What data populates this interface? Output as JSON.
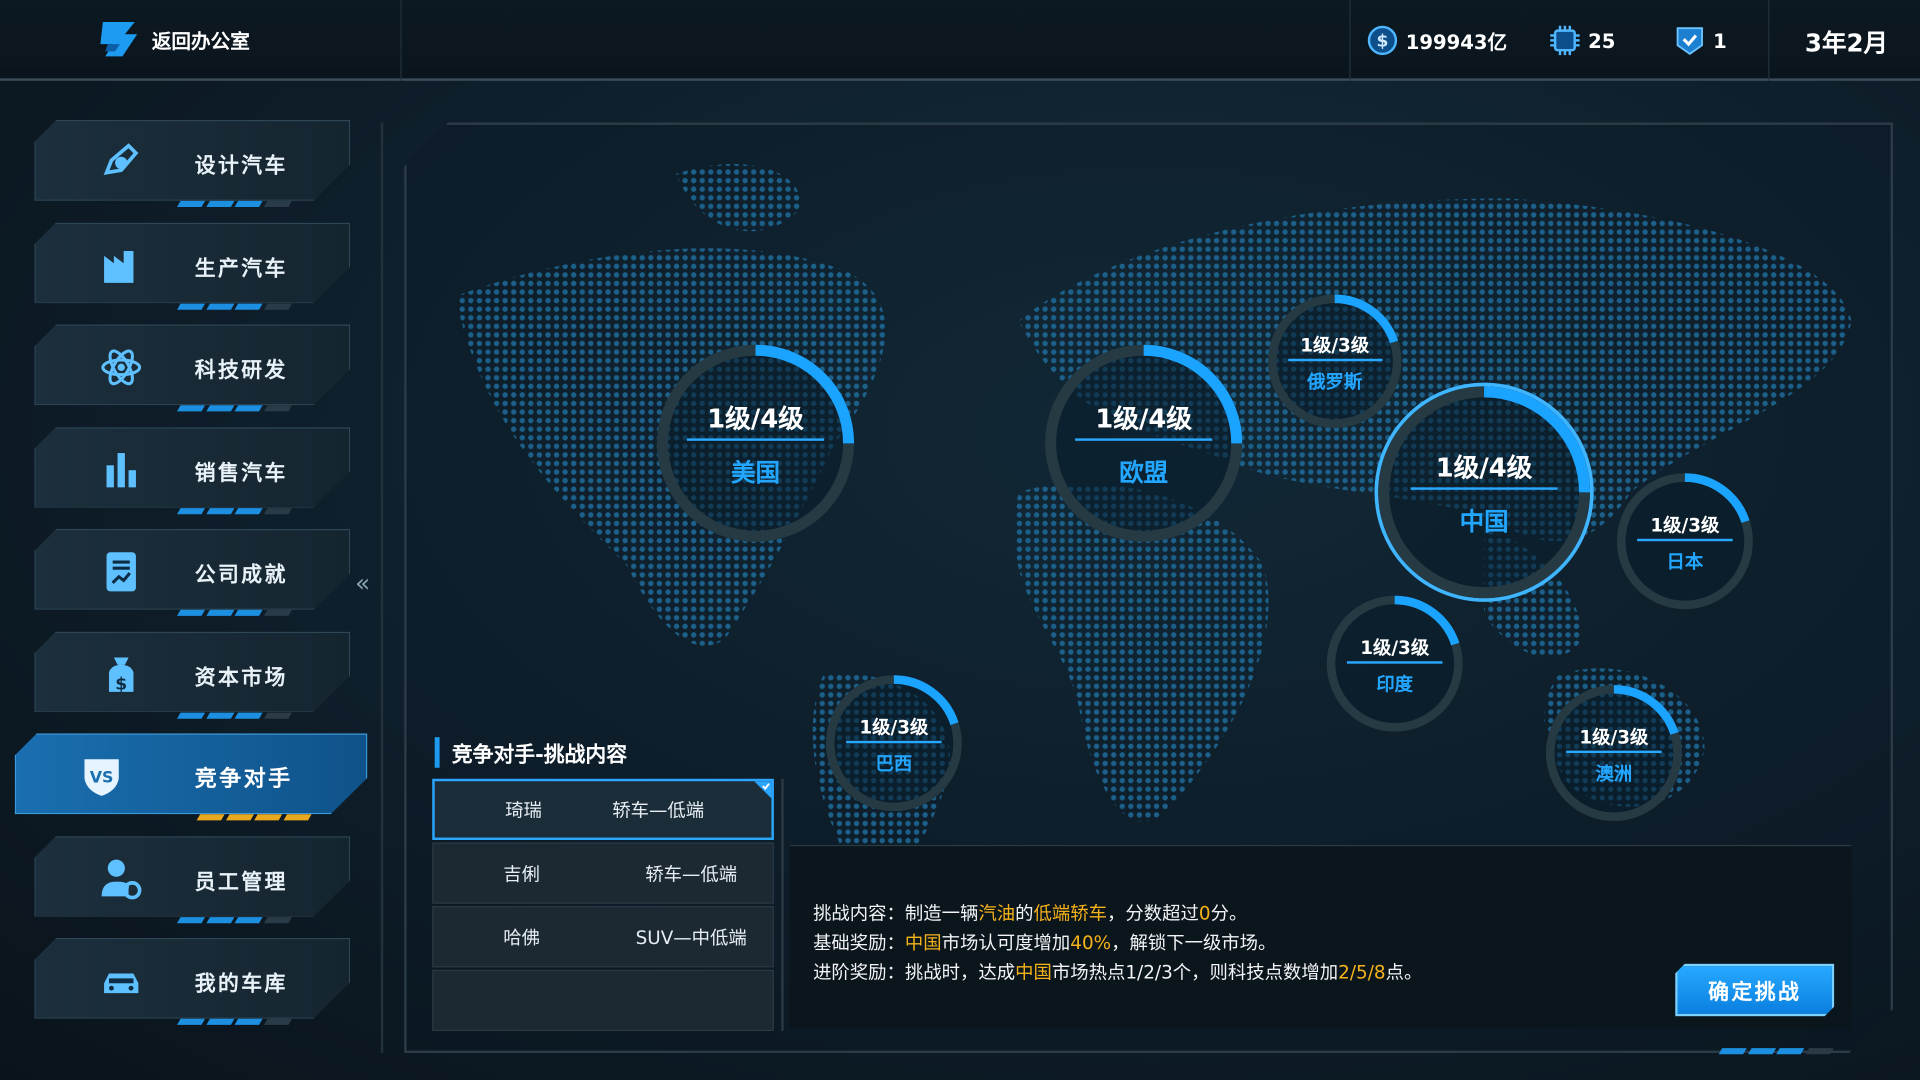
{
  "topbar": {
    "back_label": "返回办公室",
    "money": "199943亿",
    "tech_points": "25",
    "badges": "1",
    "date": "3年2月"
  },
  "sidebar": {
    "items": [
      {
        "label": "设计汽车",
        "icon": "design-icon"
      },
      {
        "label": "生产汽车",
        "icon": "factory-icon"
      },
      {
        "label": "科技研发",
        "icon": "atom-icon"
      },
      {
        "label": "销售汽车",
        "icon": "bar-chart-icon"
      },
      {
        "label": "公司成就",
        "icon": "report-icon"
      },
      {
        "label": "资本市场",
        "icon": "money-bag-icon"
      },
      {
        "label": "竞争对手",
        "icon": "vs-shield-icon",
        "active": true
      },
      {
        "label": "员工管理",
        "icon": "staff-icon"
      },
      {
        "label": "我的车库",
        "icon": "garage-icon"
      }
    ],
    "collapse_label": "«"
  },
  "markets": [
    {
      "name": "美国",
      "level": "1级/4级",
      "progress": 0.25
    },
    {
      "name": "欧盟",
      "level": "1级/4级",
      "progress": 0.25
    },
    {
      "name": "俄罗斯",
      "level": "1级/3级",
      "progress": 0.2
    },
    {
      "name": "中国",
      "level": "1级/4级",
      "progress": 0.25,
      "selected": true
    },
    {
      "name": "日本",
      "level": "1级/3级",
      "progress": 0.2
    },
    {
      "name": "印度",
      "level": "1级/3级",
      "progress": 0.2
    },
    {
      "name": "巴西",
      "level": "1级/3级",
      "progress": 0.2
    },
    {
      "name": "澳洲",
      "level": "1级/3级",
      "progress": 0.2
    }
  ],
  "challenge": {
    "title": "竞争对手-挑战内容",
    "rivals": [
      {
        "brand": "琦瑞",
        "segment": "轿车—低端",
        "selected": true
      },
      {
        "brand": "吉俐",
        "segment": "轿车—低端"
      },
      {
        "brand": "哈佛",
        "segment": "SUV—中低端"
      }
    ],
    "content": {
      "label": "挑战内容：",
      "t1": "制造一辆",
      "h1": "汽油",
      "t2": "的",
      "h2": "低端轿车",
      "t3": "，分数超过",
      "h3": "0",
      "t4": "分。"
    },
    "basic": {
      "label": "基础奖励：",
      "h1": "中国",
      "t1": "市场认可度增加",
      "h2": "40%",
      "t2": "，解锁下一级市场。"
    },
    "advanced": {
      "label": "进阶奖励：",
      "t1": "挑战时，达成",
      "h1": "中国",
      "t2": "市场热点1/2/3个，则科技点数增加",
      "h2": "2/5/8",
      "t3": "点。"
    },
    "confirm_label": "确定挑战"
  },
  "colors": {
    "accent": "#1d9bf0",
    "highlight": "#f5b21b",
    "active_nav": "#1a6fb0"
  }
}
